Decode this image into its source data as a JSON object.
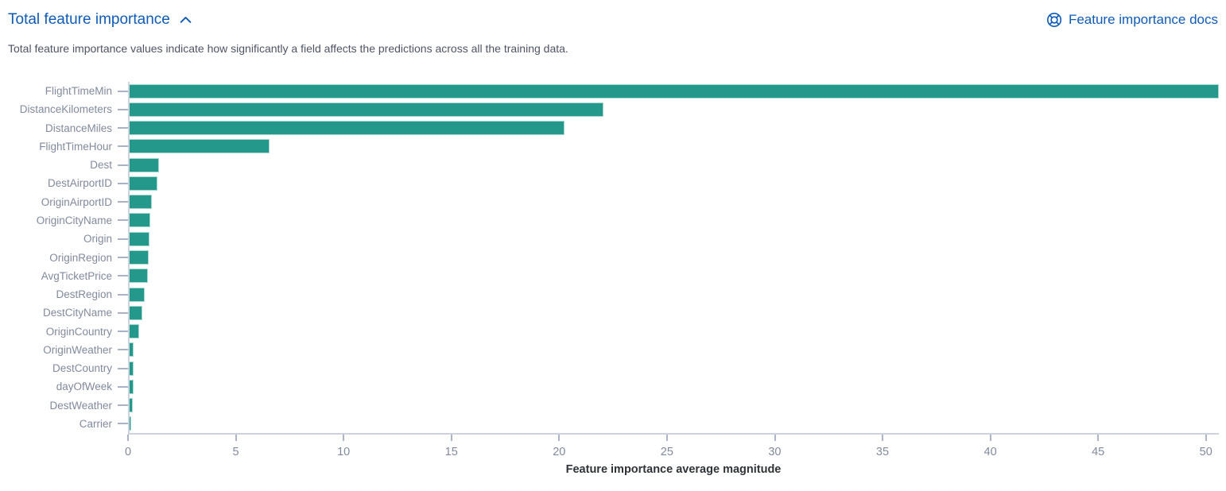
{
  "header": {
    "title": "Total feature importance",
    "docs_link_label": "Feature importance docs"
  },
  "description": "Total feature importance values indicate how significantly a field affects the predictions across all the training data.",
  "colors": {
    "link_blue": "#0f5bb8",
    "bar_teal": "#24988a",
    "axis_line": "#ccd3df",
    "tick": "#aab3c5",
    "axis_text": "#818a9c"
  },
  "icons": {
    "collapse": "chevron-up-icon",
    "docs": "help-life-ring-icon"
  },
  "chart_data": {
    "type": "bar",
    "orientation": "horizontal",
    "title": "",
    "xlabel": "Feature importance average magnitude",
    "ylabel": "",
    "categories": [
      "FlightTimeMin",
      "DistanceKilometers",
      "DistanceMiles",
      "FlightTimeHour",
      "Dest",
      "DestAirportID",
      "OriginAirportID",
      "OriginCityName",
      "Origin",
      "OriginRegion",
      "AvgTicketPrice",
      "DestRegion",
      "DestCityName",
      "OriginCountry",
      "OriginWeather",
      "DestCountry",
      "dayOfWeek",
      "DestWeather",
      "Carrier"
    ],
    "values": [
      50.6,
      22.0,
      20.2,
      6.5,
      1.35,
      1.3,
      1.05,
      0.95,
      0.92,
      0.88,
      0.84,
      0.72,
      0.6,
      0.44,
      0.2,
      0.18,
      0.17,
      0.15,
      0.06
    ],
    "x_ticks": [
      0,
      5,
      10,
      15,
      20,
      25,
      30,
      35,
      40,
      45,
      50
    ],
    "xlim": [
      0,
      50.6
    ],
    "grid": false,
    "legend": "none",
    "bar_color": "#24988a"
  }
}
